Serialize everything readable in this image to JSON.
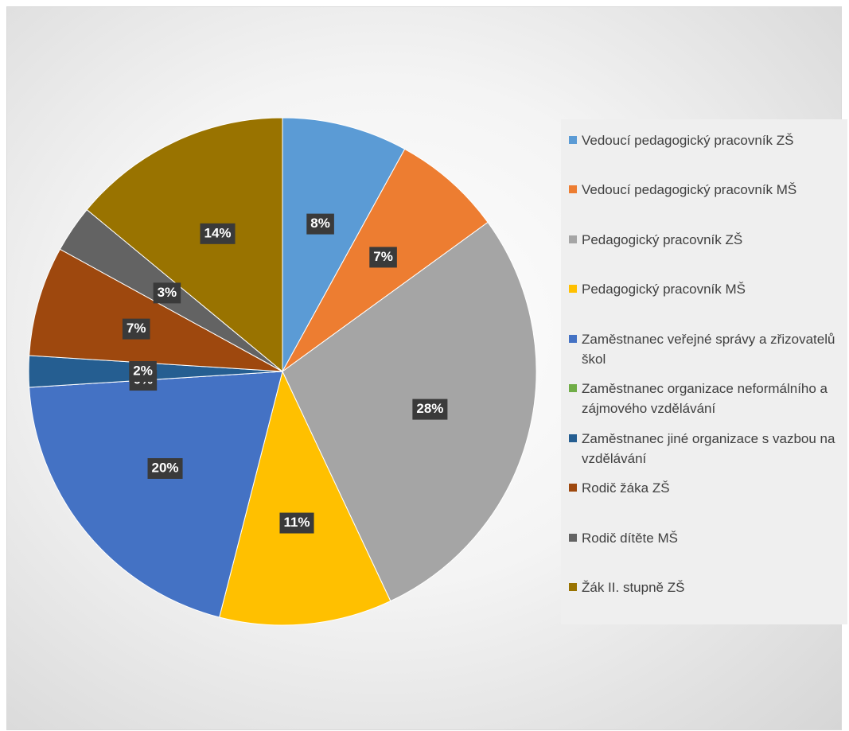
{
  "chart_data": {
    "type": "pie",
    "categories": [
      "Vedoucí pedagogický pracovník ZŠ",
      "Vedoucí pedagogický pracovník MŠ",
      "Pedagogický pracovník ZŠ",
      "Pedagogický pracovník MŠ",
      "Zaměstnanec veřejné správy a zřizovatelů škol",
      "Zaměstnanec organizace neformálního a zájmového vzdělávání",
      "Zaměstnanec jiné organizace s vazbou na vzdělávání",
      "Rodič žáka ZŠ",
      "Rodič dítěte MŠ",
      "Žák II. stupně ZŠ"
    ],
    "values": [
      8,
      7,
      28,
      11,
      20,
      0,
      2,
      7,
      3,
      14
    ],
    "value_labels": [
      "8%",
      "7%",
      "28%",
      "11%",
      "20%",
      "0%",
      "2%",
      "7%",
      "3%",
      "14%"
    ],
    "colors": [
      "#5b9bd5",
      "#ed7d31",
      "#a5a5a5",
      "#ffc000",
      "#4472c4",
      "#70ad47",
      "#255e91",
      "#9e480e",
      "#636363",
      "#997300"
    ],
    "legend": "right"
  }
}
